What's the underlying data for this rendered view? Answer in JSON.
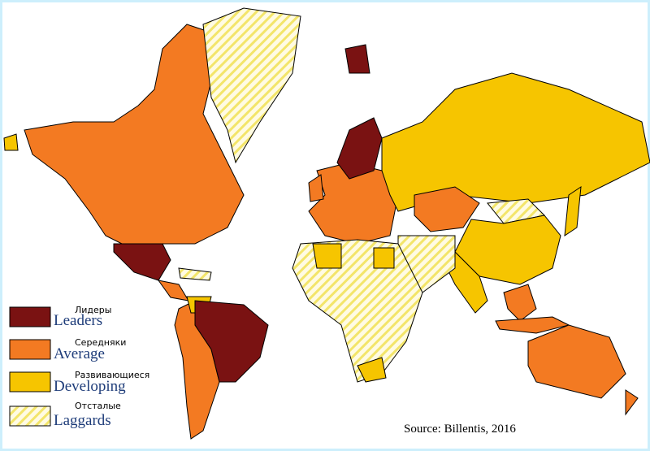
{
  "legend": [
    {
      "label_ru": "Лидеры",
      "label_en": "Leaders"
    },
    {
      "label_ru": "Середняки",
      "label_en": "Average"
    },
    {
      "label_ru": "Развивающиеся",
      "label_en": "Developing"
    },
    {
      "label_ru": "Отсталые",
      "label_en": "Laggards"
    }
  ],
  "source": "Source: Billentis, 2016"
}
